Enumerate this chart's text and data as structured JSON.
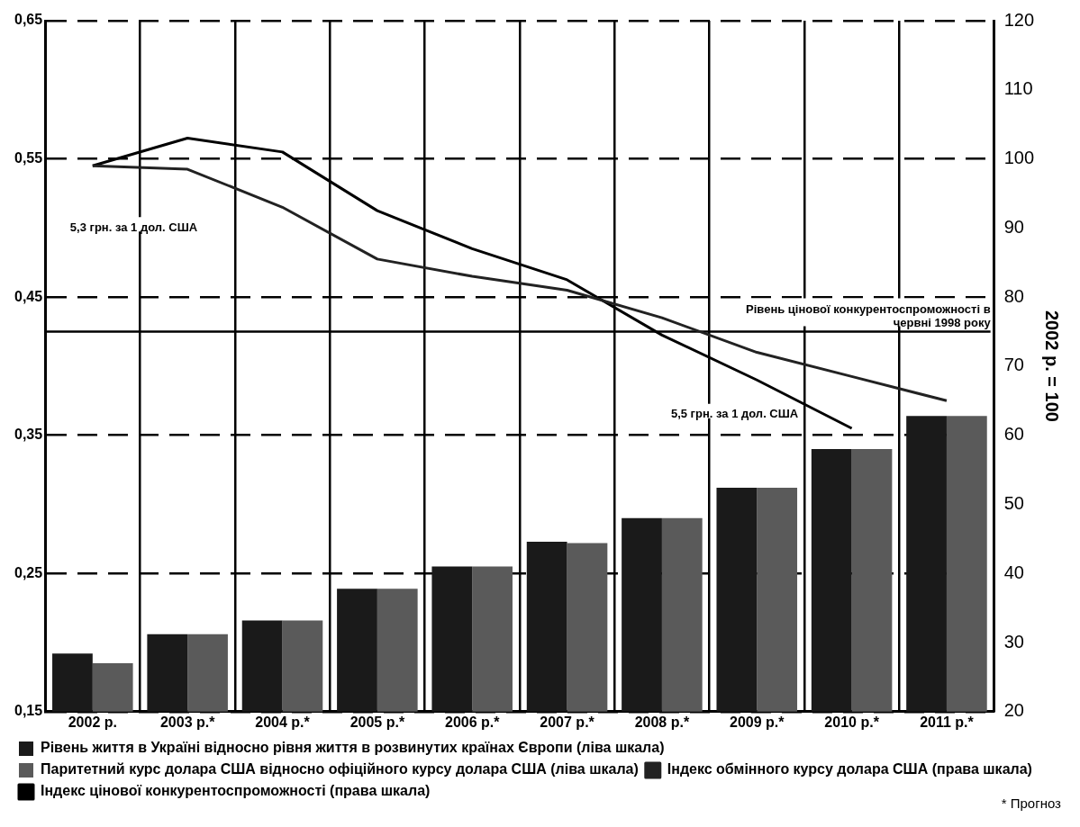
{
  "chart_data": {
    "type": "bar",
    "categories": [
      "2002 р.",
      "2003 р.*",
      "2004 р.*",
      "2005 р.*",
      "2006 р.*",
      "2007 р.*",
      "2008 р.*",
      "2009 р.*",
      "2010 р.*",
      "2011 р.*"
    ],
    "series": [
      {
        "name": "Рівень життя в Україні відносно рівня життя в розвинутих країнах Європи (ліва шкала)",
        "color": "#1a1a1a",
        "values": [
          0.192,
          0.206,
          0.216,
          0.239,
          0.255,
          0.273,
          0.29,
          0.312,
          0.34,
          0.364
        ]
      },
      {
        "name": "Паритетний курс долара США відносно офіційного курсу долара США (ліва шкала)",
        "color": "#5a5a5a",
        "values": [
          0.185,
          0.206,
          0.216,
          0.239,
          0.255,
          0.272,
          0.29,
          0.312,
          0.34,
          0.364
        ]
      },
      {
        "name": "Індекс обмінного курсу долара США (права шкала)",
        "type": "line",
        "axis": "y2",
        "color": "#222222",
        "values": [
          99,
          98.5,
          93,
          85.5,
          83,
          81,
          77,
          72,
          68.5,
          65
        ]
      },
      {
        "name": "Індекс цінової конкурентоспроможності (права шкала)",
        "type": "line",
        "axis": "y2",
        "color": "#000000",
        "values": [
          99,
          103,
          101,
          92.5,
          87,
          82.5,
          74.5,
          68,
          61,
          null
        ]
      }
    ],
    "ylim": [
      0.15,
      0.65
    ],
    "yticks": [
      {
        "value": 0.15,
        "label": "0,15"
      },
      {
        "value": 0.25,
        "label": "0,25"
      },
      {
        "value": 0.35,
        "label": "0,35"
      },
      {
        "value": 0.45,
        "label": "0,45"
      },
      {
        "value": 0.55,
        "label": "0,55"
      },
      {
        "value": 0.65,
        "label": "0,65"
      }
    ],
    "y2lim": [
      20,
      120
    ],
    "y2ticks": [
      20,
      30,
      40,
      50,
      60,
      70,
      80,
      90,
      100,
      110,
      120
    ],
    "y2label": "2002 р. = 100",
    "ref_lines": [
      {
        "axis": "y2",
        "value": 75,
        "label": "Рівень цінової конкурентоспроможності в червні 1998 року",
        "color": "#000000"
      }
    ],
    "annotations": [
      "5,3 грн. за 1 дол. США",
      "5,5 грн. за 1 дол. США",
      "* Прогноз"
    ],
    "grid": true,
    "legend": "bottom",
    "marker": "none"
  }
}
